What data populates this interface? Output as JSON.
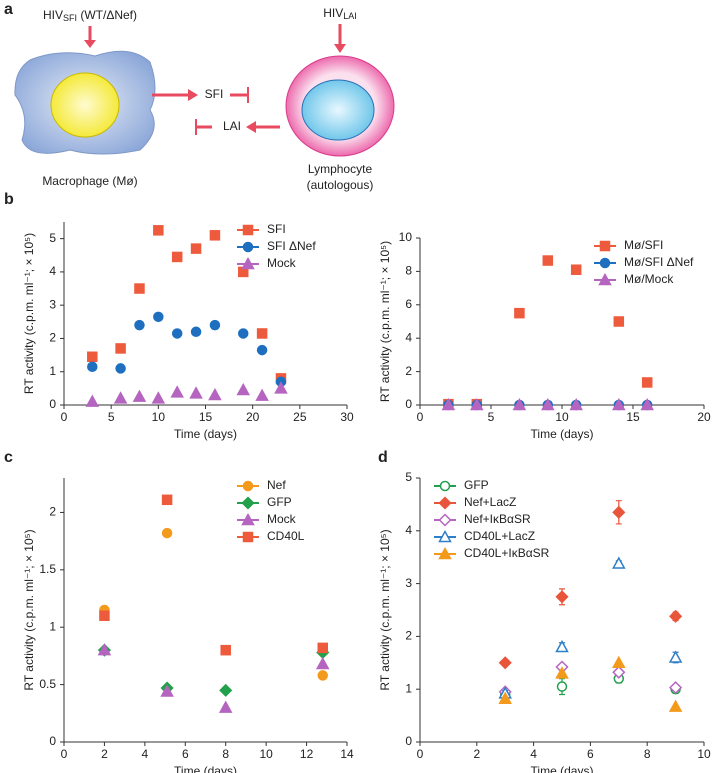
{
  "panels": [
    "a",
    "b",
    "c",
    "d"
  ],
  "diagram": {
    "virus_left": {
      "main": "HIV",
      "sub": "SFI",
      "rest": " (WT/ΔNef)"
    },
    "virus_right": {
      "main": "HIV",
      "sub": "LAI"
    },
    "arrow_right": "SFI",
    "arrow_left": "LAI",
    "macrophage": "Macrophage (Mø)",
    "lymphocyte": [
      "Lymphocyte",
      "(autologous)"
    ]
  },
  "chart_data": [
    {
      "type": "line",
      "xlabel": "Time (days)",
      "ylabel": "RT activity (c.p.m. ml⁻¹; × 10⁵)",
      "x": [
        3,
        6,
        8,
        10,
        12,
        14,
        16,
        19,
        21,
        23
      ],
      "series": [
        {
          "name": "SFI",
          "color": "#ee5a3c",
          "marker": "square",
          "filled": true,
          "values": [
            1.45,
            1.7,
            3.5,
            5.25,
            4.45,
            4.7,
            5.1,
            4.0,
            2.15,
            0.8
          ]
        },
        {
          "name": "SFI ΔNef",
          "color": "#1f6fc0",
          "marker": "circle",
          "filled": true,
          "values": [
            1.15,
            1.1,
            2.4,
            2.65,
            2.15,
            2.2,
            2.4,
            2.15,
            1.65,
            0.7
          ]
        },
        {
          "name": "Mock",
          "color": "#b565c0",
          "marker": "triangle",
          "filled": true,
          "values": [
            0.1,
            0.2,
            0.25,
            0.2,
            0.38,
            0.35,
            0.3,
            0.45,
            0.28,
            0.5
          ]
        }
      ],
      "xlim": [
        0,
        30
      ],
      "xticks": [
        0,
        5,
        10,
        15,
        20,
        25,
        30
      ],
      "ylim": [
        0,
        5.5
      ],
      "yticks": [
        0,
        1,
        2,
        3,
        4,
        5
      ],
      "legend": "upper right"
    },
    {
      "type": "line",
      "xlabel": "Time (days)",
      "ylabel": "RT activity (c.p.m. ml⁻¹; × 10⁵)",
      "x": [
        2,
        4,
        7,
        9,
        11,
        14,
        16
      ],
      "series": [
        {
          "name": "Mø/SFI",
          "color": "#ee5a3c",
          "marker": "square",
          "filled": true,
          "values": [
            0.05,
            0.05,
            5.5,
            8.65,
            8.1,
            5.0,
            1.35
          ]
        },
        {
          "name": "Mø/SFI ΔNef",
          "color": "#1f6fc0",
          "marker": "circle",
          "filled": true,
          "values": [
            0,
            0,
            0,
            0,
            0,
            0,
            0
          ]
        },
        {
          "name": "Mø/Mock",
          "color": "#b565c0",
          "marker": "triangle",
          "filled": true,
          "values": [
            0,
            0,
            0,
            0,
            0,
            0,
            0
          ]
        }
      ],
      "xlim": [
        0,
        20
      ],
      "xticks": [
        0,
        5,
        10,
        15,
        20
      ],
      "ylim": [
        0,
        10
      ],
      "yticks": [
        0,
        2,
        4,
        6,
        8,
        10
      ],
      "legend": "upper right"
    },
    {
      "type": "line",
      "xlabel": "Time (days)",
      "ylabel": "RT activity (c.p.m. ml⁻¹; × 10⁵)",
      "x": [
        2,
        5.1,
        8,
        12.8
      ],
      "series": [
        {
          "name": "Nef",
          "color": "#f39a1c",
          "marker": "circle",
          "filled": true,
          "values": [
            1.15,
            1.82,
            0.8,
            0.58
          ]
        },
        {
          "name": "GFP",
          "color": "#22a04b",
          "marker": "diamond",
          "filled": true,
          "values": [
            0.8,
            0.47,
            0.45,
            0.78
          ]
        },
        {
          "name": "Mock",
          "color": "#b565c0",
          "marker": "triangle",
          "filled": true,
          "values": [
            0.8,
            0.44,
            0.3,
            0.68
          ]
        },
        {
          "name": "CD40L",
          "color": "#ee5a3c",
          "marker": "square",
          "filled": true,
          "values": [
            1.1,
            2.11,
            0.8,
            0.82
          ]
        }
      ],
      "xlim": [
        0,
        14
      ],
      "xticks": [
        0,
        2,
        4,
        6,
        8,
        10,
        12,
        14
      ],
      "ylim": [
        0,
        2.3
      ],
      "yticks": [
        0,
        0.5,
        1,
        1.5,
        2
      ],
      "legend": "upper right"
    },
    {
      "type": "line",
      "xlabel": "Time (days)",
      "ylabel": "RT activity (c.p.m. ml⁻¹; × 10⁵)",
      "x": [
        3,
        5,
        7,
        9
      ],
      "series": [
        {
          "name": "GFP",
          "color": "#22a04b",
          "marker": "circle",
          "filled": false,
          "values": [
            0.9,
            1.05,
            1.2,
            1.0
          ],
          "errors": [
            0.05,
            0.15,
            0.08,
            0.08
          ]
        },
        {
          "name": "Nef+LacZ",
          "color": "#e9553a",
          "marker": "diamond",
          "filled": true,
          "values": [
            1.5,
            2.75,
            4.35,
            2.38
          ],
          "errors": [
            0.05,
            0.15,
            0.22,
            0.08
          ]
        },
        {
          "name": "Nef+IκBαSR",
          "color": "#b565c0",
          "marker": "diamond",
          "filled": false,
          "values": [
            0.95,
            1.42,
            1.32,
            1.03
          ]
        },
        {
          "name": "CD40L+LacZ",
          "color": "#2f7fc8",
          "marker": "triangle",
          "filled": false,
          "values": [
            0.92,
            1.8,
            3.38,
            1.6
          ],
          "errors": [
            0.05,
            0.08,
            0.05,
            0.1
          ]
        },
        {
          "name": "CD40L+IκBαSR",
          "color": "#f39a1c",
          "marker": "triangle",
          "filled": true,
          "values": [
            0.82,
            1.3,
            1.5,
            0.67
          ]
        }
      ],
      "xlim": [
        0,
        10
      ],
      "xticks": [
        0,
        2,
        4,
        6,
        8,
        10
      ],
      "ylim": [
        0,
        5
      ],
      "yticks": [
        0,
        1,
        2,
        3,
        4,
        5
      ],
      "legend": "upper left"
    }
  ]
}
